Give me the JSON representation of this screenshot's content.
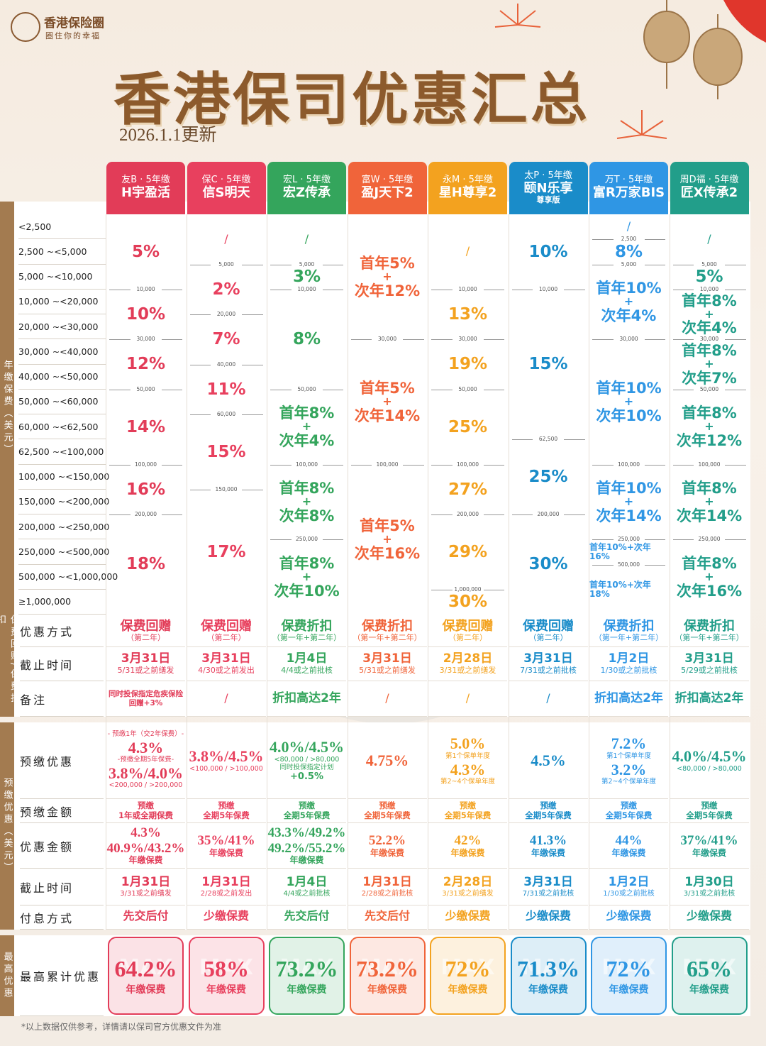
{
  "header": {
    "logo": "香港保险圈",
    "slogan": "圈住你的幸福",
    "title": "香港保司优惠汇总",
    "updated": "2026.1.1更新"
  },
  "sections": {
    "premium": "年缴保费（美元）",
    "offer": "保费回赠/保费折扣",
    "prepay": "预缴优惠（美元）",
    "max": "最高优惠"
  },
  "row_labels": {
    "brackets": [
      "<2,500",
      "2,500 ~<5,000",
      "5,000 ~<10,000",
      "10,000 ~<20,000",
      "20,000 ~<30,000",
      "30,000 ~<40,000",
      "40,000 ~<50,000",
      "50,000 ~<60,000",
      "60,000 ~<62,500",
      "62,500 ~<100,000",
      "100,000 ~<150,000",
      "150,000 ~<200,000",
      "200,000 ~<250,000",
      "250,000 ~<500,000",
      "500,000 ~<1,000,000",
      "≥1,000,000"
    ],
    "offer": [
      "优惠方式",
      "截止时间",
      "备注"
    ],
    "prepay": [
      "预缴优惠",
      "预缴金额",
      "优惠金额",
      "截止时间",
      "付息方式"
    ],
    "max": "最高累计优惠"
  },
  "columns": [
    {
      "company": "友B · 5年缴",
      "plan": "H宇盈活",
      "color": "#e23c58",
      "tiers": [
        [
          "5%"
        ],
        [
          "10%"
        ],
        [
          "12%"
        ],
        [
          "14%"
        ],
        [
          "16%"
        ],
        [
          "18%"
        ]
      ],
      "boundaries": [
        "10,000",
        "30,000",
        "50,000",
        "100,000",
        "200,000"
      ],
      "offer_type": "保费回赠",
      "offer_scope": "（第二年）",
      "deadline": "3月31日",
      "deadline_note": "5/31或之前缮发",
      "remark": [
        "同时投保指定危疾保险",
        "回赠+3%"
      ],
      "prepay_rate": [
        "- 预缴1年（交2年保费）-",
        "4.3%",
        "-预缴全期5年保费-",
        "3.8%/4.0%",
        "<200,000 / >200,000"
      ],
      "prepay_amount": [
        "预缴",
        "1年或全期保费"
      ],
      "prepay_benefit": [
        "4.3%",
        "40.9%/43.2%",
        "年缴保费"
      ],
      "prepay_deadline": "1月31日",
      "prepay_deadline_note": "3/31或之前缮发",
      "interest": "先交后付",
      "max": "64.2%",
      "max_basis": "年缴保费"
    },
    {
      "company": "保C · 5年缴",
      "plan": "信S明天",
      "color": "#e8405e",
      "tiers": [
        [
          "/"
        ],
        [
          "2%"
        ],
        [
          "7%"
        ],
        [
          "11%"
        ],
        [
          "15%"
        ],
        [
          "17%"
        ]
      ],
      "boundaries": [
        "5,000",
        "20,000",
        "40,000",
        "60,000",
        "150,000"
      ],
      "offer_type": "保费回赠",
      "offer_scope": "（第二年）",
      "deadline": "3月31日",
      "deadline_note": "4/30或之前发出",
      "remark": [
        "/"
      ],
      "prepay_rate": [
        "3.8%/4.5%",
        "<100,000 / >100,000"
      ],
      "prepay_amount": [
        "预缴",
        "全期5年保费"
      ],
      "prepay_benefit": [
        "35%/41%",
        "年缴保费"
      ],
      "prepay_deadline": "1月31日",
      "prepay_deadline_note": "2/28或之前发出",
      "interest": "少缴保费",
      "max": "58%",
      "max_basis": "年缴保费"
    },
    {
      "company": "宏L · 5年缴",
      "plan": "宏Z传承",
      "color": "#34a55c",
      "tiers": [
        [
          "/"
        ],
        [
          "3%"
        ],
        [
          "8%"
        ],
        [
          "首年8%",
          "+",
          "次年4%"
        ],
        [
          "首年8%",
          "+",
          "次年8%"
        ],
        [
          "首年8%",
          "+",
          "次年10%"
        ]
      ],
      "boundaries": [
        "5,000",
        "10,000",
        "50,000",
        "100,000",
        "250,000"
      ],
      "offer_type": "保费折扣",
      "offer_scope": "（第一年+第二年）",
      "deadline": "1月4日",
      "deadline_note": "4/4或之前批核",
      "remark": [
        "折扣高达2年"
      ],
      "prepay_rate": [
        "4.0%/4.5%",
        "<80,000 / >80,000",
        "同时投保指定计划",
        "+0.5%"
      ],
      "prepay_amount": [
        "预缴",
        "全期5年保费"
      ],
      "prepay_benefit": [
        "43.3%/49.2%",
        "49.2%/55.2%",
        "年缴保费"
      ],
      "prepay_deadline": "1月4日",
      "prepay_deadline_note": "4/4或之前批核",
      "interest": "先交后付",
      "max": "73.2%",
      "max_basis": "年缴保费"
    },
    {
      "company": "富W · 5年缴",
      "plan": "盈J天下2",
      "color": "#f0643a",
      "tiers": [
        [
          "首年5%",
          "+",
          "次年12%"
        ],
        [
          "首年5%",
          "+",
          "次年14%"
        ],
        [
          "首年5%",
          "+",
          "次年16%"
        ]
      ],
      "boundaries": [
        "30,000",
        "100,000"
      ],
      "offer_type": "保费折扣",
      "offer_scope": "（第一年+第二年）",
      "deadline": "3月31日",
      "deadline_note": "5/31或之前缮发",
      "remark": [
        "/"
      ],
      "prepay_rate": [
        "4.75%"
      ],
      "prepay_amount": [
        "预缴",
        "全期5年保费"
      ],
      "prepay_benefit": [
        "52.2%",
        "年缴保费"
      ],
      "prepay_deadline": "1月31日",
      "prepay_deadline_note": "2/28或之前批核",
      "interest": "先交后付",
      "max": "73.2%",
      "max_basis": "年缴保费"
    },
    {
      "company": "永M · 5年缴",
      "plan": "星H尊享2",
      "color": "#f3a21f",
      "tiers": [
        [
          "/"
        ],
        [
          "13%"
        ],
        [
          "19%"
        ],
        [
          "25%"
        ],
        [
          "27%"
        ],
        [
          "29%"
        ],
        [
          "30%"
        ]
      ],
      "boundaries": [
        "10,000",
        "30,000",
        "50,000",
        "100,000",
        "200,000",
        "1,000,000"
      ],
      "offer_type": "保费回赠",
      "offer_scope": "（第二年）",
      "deadline": "2月28日",
      "deadline_note": "3/31或之前缮发",
      "remark": [
        "/"
      ],
      "prepay_rate": [
        "5.0%",
        "第1个保单年度",
        "4.3%",
        "第2~4个保单年度"
      ],
      "prepay_amount": [
        "预缴",
        "全期5年保费"
      ],
      "prepay_benefit": [
        "42%",
        "年缴保费"
      ],
      "prepay_deadline": "2月28日",
      "prepay_deadline_note": "3/31或之前缮发",
      "interest": "少缴保费",
      "max": "72%",
      "max_basis": "年缴保费"
    },
    {
      "company": "太P · 5年缴",
      "plan": "颐N乐享",
      "plan_sub": "尊享版",
      "color": "#1a8cc9",
      "tiers": [
        [
          "10%"
        ],
        [
          "15%"
        ],
        [
          "25%"
        ],
        [
          "30%"
        ]
      ],
      "boundaries": [
        "10,000",
        "62,500",
        "200,000"
      ],
      "offer_type": "保费回赠",
      "offer_scope": "（第二年）",
      "deadline": "3月31日",
      "deadline_note": "7/31或之前批核",
      "remark": [
        "/"
      ],
      "prepay_rate": [
        "4.5%"
      ],
      "prepay_amount": [
        "预缴",
        "全期5年保费"
      ],
      "prepay_benefit": [
        "41.3%",
        "年缴保费"
      ],
      "prepay_deadline": "3月31日",
      "prepay_deadline_note": "7/31或之前批核",
      "interest": "少缴保费",
      "max": "71.3%",
      "max_basis": "年缴保费"
    },
    {
      "company": "万T · 5年缴",
      "plan": "富R万家BIS",
      "color": "#2f96e4",
      "tiers": [
        [
          "/"
        ],
        [
          "8%"
        ],
        [
          "首年10%",
          "+",
          "次年4%"
        ],
        [
          "首年10%",
          "+",
          "次年10%"
        ],
        [
          "首年10%",
          "+",
          "次年14%"
        ],
        [
          "首年10%+次年16%"
        ],
        [
          "首年10%+次年18%"
        ]
      ],
      "boundaries": [
        "2,500",
        "5,000",
        "30,000",
        "100,000",
        "250,000",
        "500,000"
      ],
      "offer_type": "保费折扣",
      "offer_scope": "（第一年+第二年）",
      "deadline": "1月2日",
      "deadline_note": "1/30或之前批核",
      "remark": [
        "折扣高达2年"
      ],
      "prepay_rate": [
        "7.2%",
        "第1个保单年度",
        "3.2%",
        "第2~4个保单年度"
      ],
      "prepay_amount": [
        "预缴",
        "全期5年保费"
      ],
      "prepay_benefit": [
        "44%",
        "年缴保费"
      ],
      "prepay_deadline": "1月2日",
      "prepay_deadline_note": "1/30或之前批核",
      "interest": "少缴保费",
      "max": "72%",
      "max_basis": "年缴保费"
    },
    {
      "company": "周D福 · 5年缴",
      "plan": "匠X传承2",
      "color": "#229e8a",
      "tiers": [
        [
          "/"
        ],
        [
          "5%"
        ],
        [
          "首年8%",
          "+",
          "次年4%"
        ],
        [
          "首年8%",
          "+",
          "次年7%"
        ],
        [
          "首年8%",
          "+",
          "次年12%"
        ],
        [
          "首年8%",
          "+",
          "次年14%"
        ],
        [
          "首年8%",
          "+",
          "次年16%"
        ]
      ],
      "boundaries": [
        "5,000",
        "10,000",
        "30,000",
        "50,000",
        "100,000",
        "250,000"
      ],
      "offer_type": "保费折扣",
      "offer_scope": "（第一年+第二年）",
      "deadline": "3月31日",
      "deadline_note": "5/29或之前批核",
      "remark": [
        "折扣高达2年"
      ],
      "prepay_rate": [
        "4.0%/4.5%",
        "<80,000 / >80,000"
      ],
      "prepay_amount": [
        "预缴",
        "全期5年保费"
      ],
      "prepay_benefit": [
        "37%/41%",
        "年缴保费"
      ],
      "prepay_deadline": "1月30日",
      "prepay_deadline_note": "3/31或之前批核",
      "interest": "少缴保费",
      "max": "65%",
      "max_basis": "年缴保费"
    }
  ],
  "watermark": "MAX",
  "footnote": "*以上数据仅供参考，详情请以保司官方优惠文件为准"
}
